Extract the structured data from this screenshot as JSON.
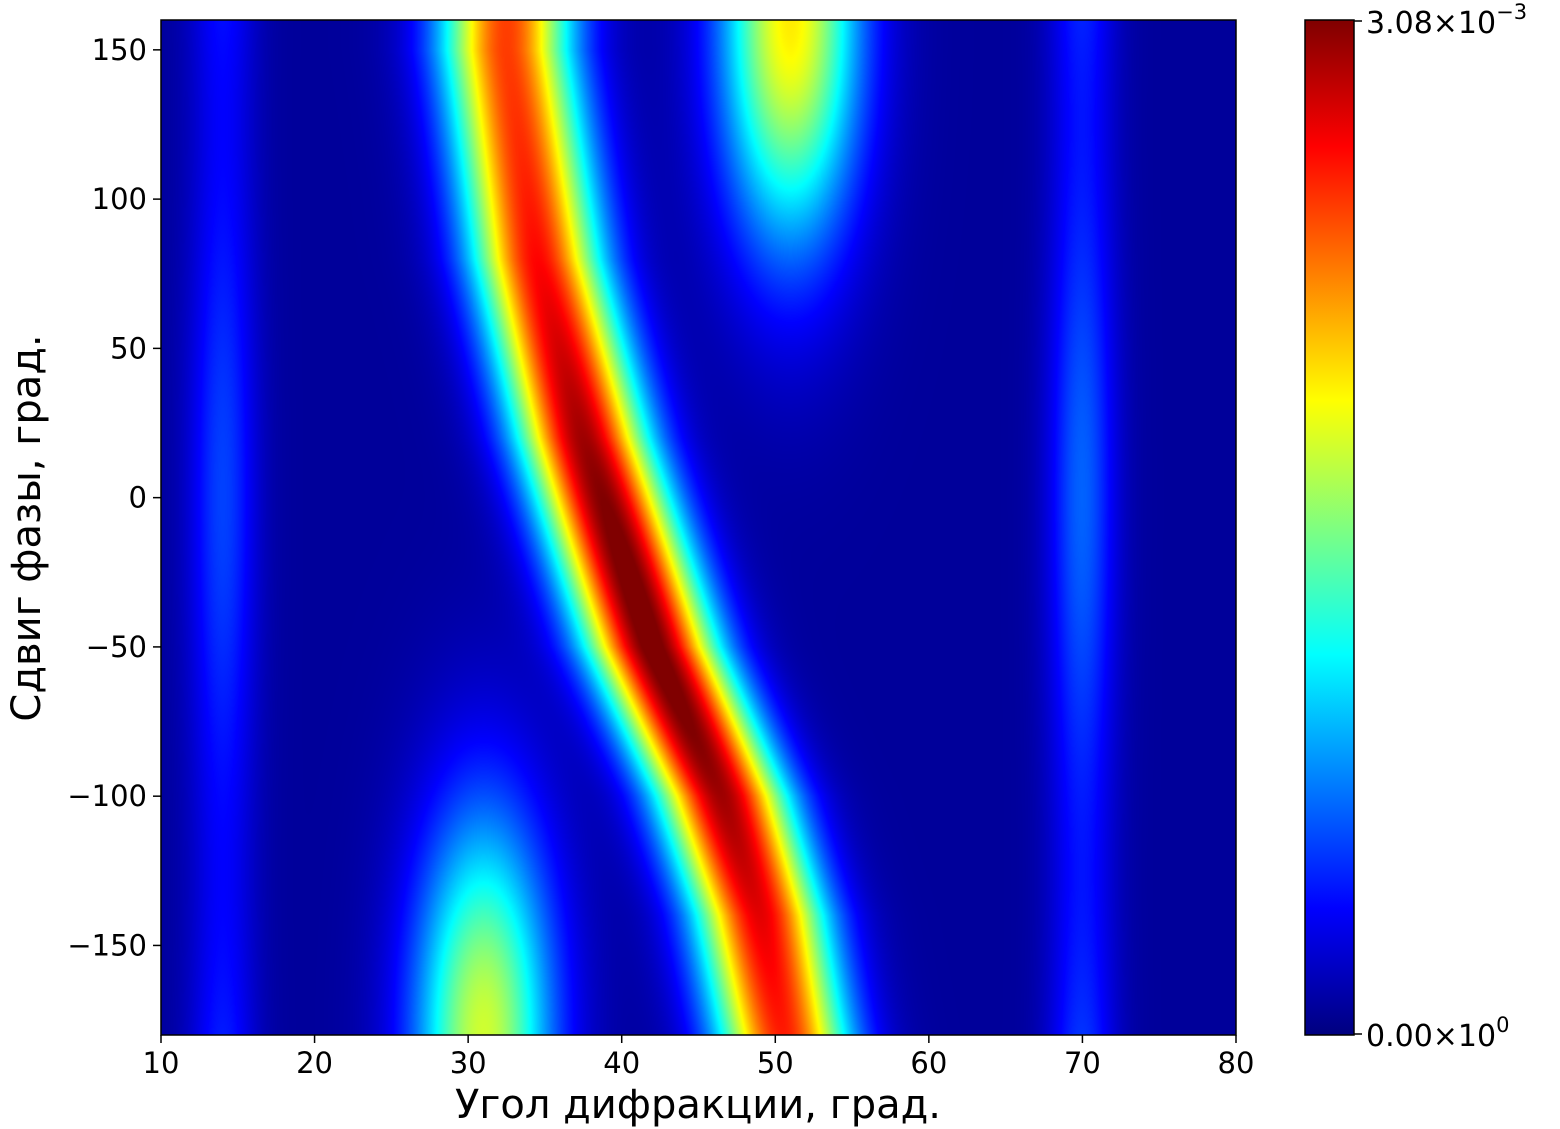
{
  "chart_data": {
    "type": "heatmap",
    "title": "",
    "xlabel": "Угол дифракции, град.",
    "ylabel": "Сдвиг фазы, град.",
    "xlim": [
      10,
      80
    ],
    "ylim": [
      -180,
      160
    ],
    "xticks": [
      10,
      20,
      30,
      40,
      50,
      60,
      70,
      80
    ],
    "yticks": [
      -150,
      -100,
      -50,
      0,
      50,
      100,
      150
    ],
    "xtick_labels": [
      "10",
      "20",
      "30",
      "40",
      "50",
      "60",
      "70",
      "80"
    ],
    "ytick_labels": [
      "−150",
      "−100",
      "−50",
      "0",
      "50",
      "100",
      "150"
    ],
    "colormap": "jet",
    "grid": false,
    "colorbar": {
      "min": 0,
      "max": 0.00308,
      "min_label": {
        "mantissa": "0.00",
        "exponent": "0"
      },
      "max_label": {
        "mantissa": "3.08",
        "exponent": "−3"
      }
    },
    "features": [
      {
        "kind": "ridge",
        "peak_value": 0.00308,
        "path_x": [
          32.5,
          34.5,
          37.5,
          42,
          46.5,
          49,
          50.5
        ],
        "path_y": [
          150,
          80,
          20,
          -50,
          -100,
          -140,
          -180
        ]
      },
      {
        "kind": "secondary-lobe",
        "peak_value": 0.0019,
        "x": 51,
        "y": 160
      },
      {
        "kind": "secondary-lobe",
        "peak_value": 0.0017,
        "x": 31,
        "y": -180
      },
      {
        "kind": "band",
        "peak_value": 0.0006,
        "x": 70,
        "y_range": [
          -180,
          160
        ]
      },
      {
        "kind": "band",
        "peak_value": 0.0005,
        "x": 14,
        "y_range": [
          -180,
          160
        ]
      }
    ]
  }
}
